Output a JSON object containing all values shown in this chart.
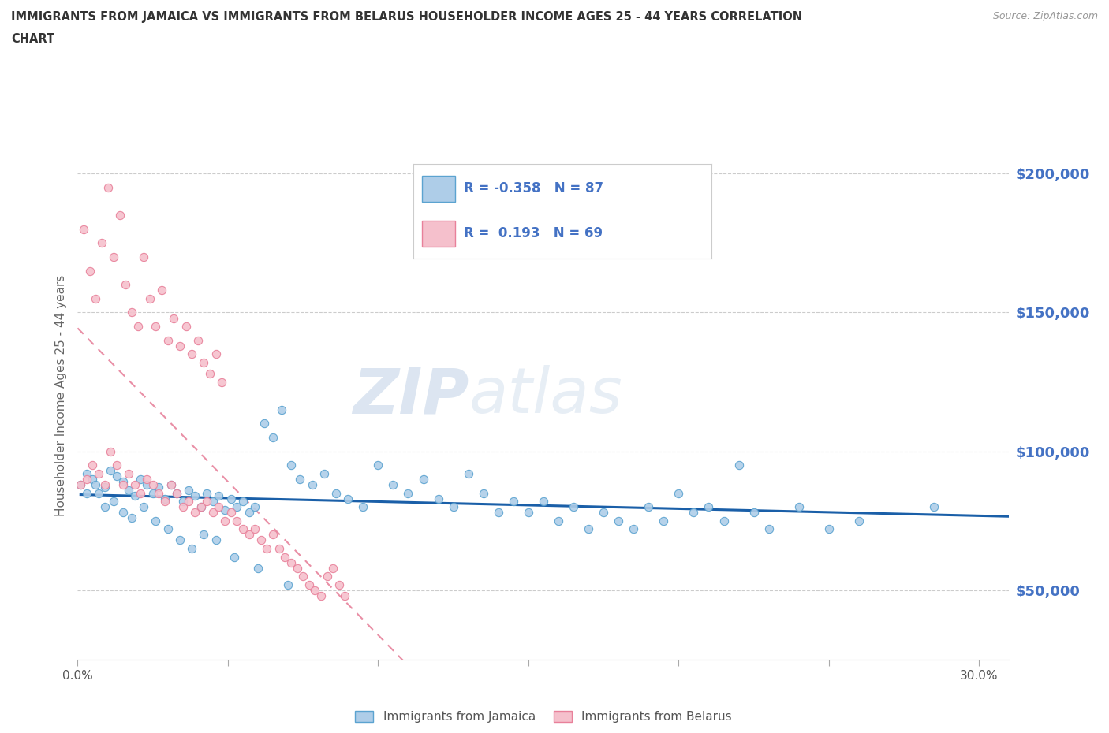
{
  "title_line1": "IMMIGRANTS FROM JAMAICA VS IMMIGRANTS FROM BELARUS HOUSEHOLDER INCOME AGES 25 - 44 YEARS CORRELATION",
  "title_line2": "CHART",
  "source_text": "Source: ZipAtlas.com",
  "watermark_zip": "ZIP",
  "watermark_atlas": "atlas",
  "ylabel": "Householder Income Ages 25 - 44 years",
  "xlim": [
    0.0,
    0.31
  ],
  "ylim": [
    25000,
    215000
  ],
  "yticks": [
    50000,
    100000,
    150000,
    200000
  ],
  "ytick_labels": [
    "$50,000",
    "$100,000",
    "$150,000",
    "$200,000"
  ],
  "xticks": [
    0.0,
    0.05,
    0.1,
    0.15,
    0.2,
    0.25,
    0.3
  ],
  "xtick_labels": [
    "0.0%",
    "",
    "",
    "",
    "",
    "",
    "30.0%"
  ],
  "jamaica_color_edge": "#5ba3d0",
  "jamaica_color_fill": "#aecde8",
  "belarus_color_edge": "#e8809a",
  "belarus_color_fill": "#f5c0cc",
  "line_jamaica_color": "#1a5fa8",
  "line_belarus_color": "#e06080",
  "R_jamaica": -0.358,
  "N_jamaica": 87,
  "R_belarus": 0.193,
  "N_belarus": 69,
  "legend_label_jamaica": "Immigrants from Jamaica",
  "legend_label_belarus": "Immigrants from Belarus",
  "tick_label_color": "#4472c4",
  "title_color": "#333333",
  "source_color": "#999999",
  "ylabel_color": "#666666",
  "jamaica_x": [
    0.001,
    0.003,
    0.005,
    0.007,
    0.009,
    0.011,
    0.013,
    0.015,
    0.017,
    0.019,
    0.021,
    0.023,
    0.025,
    0.027,
    0.029,
    0.031,
    0.033,
    0.035,
    0.037,
    0.039,
    0.041,
    0.043,
    0.045,
    0.047,
    0.049,
    0.051,
    0.053,
    0.055,
    0.057,
    0.059,
    0.062,
    0.065,
    0.068,
    0.071,
    0.074,
    0.078,
    0.082,
    0.086,
    0.09,
    0.095,
    0.1,
    0.105,
    0.11,
    0.115,
    0.12,
    0.125,
    0.13,
    0.135,
    0.14,
    0.145,
    0.15,
    0.155,
    0.16,
    0.165,
    0.17,
    0.175,
    0.18,
    0.185,
    0.19,
    0.195,
    0.2,
    0.205,
    0.21,
    0.215,
    0.22,
    0.225,
    0.23,
    0.24,
    0.25,
    0.26,
    0.003,
    0.006,
    0.009,
    0.012,
    0.015,
    0.018,
    0.022,
    0.026,
    0.03,
    0.034,
    0.038,
    0.042,
    0.046,
    0.052,
    0.06,
    0.07,
    0.285
  ],
  "jamaica_y": [
    88000,
    92000,
    90000,
    85000,
    87000,
    93000,
    91000,
    89000,
    86000,
    84000,
    90000,
    88000,
    85000,
    87000,
    83000,
    88000,
    85000,
    82000,
    86000,
    84000,
    80000,
    85000,
    82000,
    84000,
    79000,
    83000,
    80000,
    82000,
    78000,
    80000,
    110000,
    105000,
    115000,
    95000,
    90000,
    88000,
    92000,
    85000,
    83000,
    80000,
    95000,
    88000,
    85000,
    90000,
    83000,
    80000,
    92000,
    85000,
    78000,
    82000,
    78000,
    82000,
    75000,
    80000,
    72000,
    78000,
    75000,
    72000,
    80000,
    75000,
    85000,
    78000,
    80000,
    75000,
    95000,
    78000,
    72000,
    80000,
    72000,
    75000,
    85000,
    88000,
    80000,
    82000,
    78000,
    76000,
    80000,
    75000,
    72000,
    68000,
    65000,
    70000,
    68000,
    62000,
    58000,
    52000,
    80000
  ],
  "belarus_x": [
    0.001,
    0.003,
    0.005,
    0.007,
    0.009,
    0.011,
    0.013,
    0.015,
    0.017,
    0.019,
    0.021,
    0.023,
    0.025,
    0.027,
    0.029,
    0.031,
    0.033,
    0.035,
    0.037,
    0.039,
    0.041,
    0.043,
    0.045,
    0.047,
    0.049,
    0.051,
    0.053,
    0.055,
    0.057,
    0.059,
    0.061,
    0.063,
    0.065,
    0.067,
    0.069,
    0.071,
    0.073,
    0.075,
    0.077,
    0.079,
    0.081,
    0.083,
    0.085,
    0.087,
    0.089,
    0.002,
    0.004,
    0.006,
    0.008,
    0.01,
    0.012,
    0.014,
    0.016,
    0.018,
    0.02,
    0.022,
    0.024,
    0.026,
    0.028,
    0.03,
    0.032,
    0.034,
    0.036,
    0.038,
    0.04,
    0.042,
    0.044,
    0.046,
    0.048
  ],
  "belarus_y": [
    88000,
    90000,
    95000,
    92000,
    88000,
    100000,
    95000,
    88000,
    92000,
    88000,
    85000,
    90000,
    88000,
    85000,
    82000,
    88000,
    85000,
    80000,
    82000,
    78000,
    80000,
    82000,
    78000,
    80000,
    75000,
    78000,
    75000,
    72000,
    70000,
    72000,
    68000,
    65000,
    70000,
    65000,
    62000,
    60000,
    58000,
    55000,
    52000,
    50000,
    48000,
    55000,
    58000,
    52000,
    48000,
    180000,
    165000,
    155000,
    175000,
    195000,
    170000,
    185000,
    160000,
    150000,
    145000,
    170000,
    155000,
    145000,
    158000,
    140000,
    148000,
    138000,
    145000,
    135000,
    140000,
    132000,
    128000,
    135000,
    125000
  ]
}
